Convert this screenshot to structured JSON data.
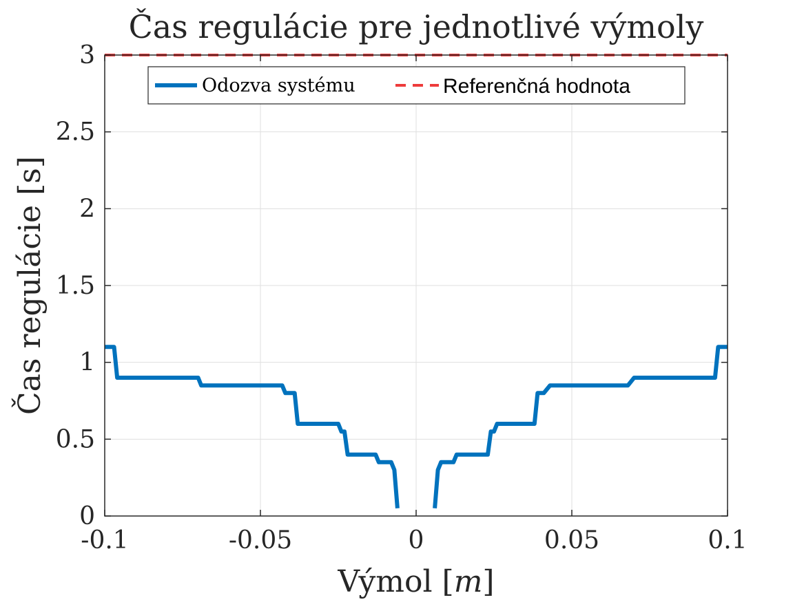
{
  "chart_data": {
    "type": "line",
    "title": "Čas regulácie pre jednotlivé výmoly",
    "xlabel": "Výmol [m]",
    "ylabel": "Čas regulácie [s]",
    "xlim": [
      -0.1,
      0.1
    ],
    "ylim": [
      0,
      3
    ],
    "xticks": [
      -0.1,
      -0.05,
      0,
      0.05,
      0.1
    ],
    "xtick_labels": [
      "-0.1",
      "-0.05",
      "0",
      "0.05",
      "0.1"
    ],
    "yticks": [
      0,
      0.5,
      1,
      1.5,
      2,
      2.5,
      3
    ],
    "ytick_labels": [
      "0",
      "0.5",
      "1",
      "1.5",
      "2",
      "2.5",
      "3"
    ],
    "grid": true,
    "legend_position": "top-center",
    "series": [
      {
        "name": "Odozva systému",
        "color": "#0072BD",
        "style": "solid",
        "segments": [
          {
            "x": [
              -0.1,
              -0.097,
              -0.096,
              -0.07,
              -0.069,
              -0.043,
              -0.042,
              -0.039,
              -0.038,
              -0.025,
              -0.024,
              -0.023,
              -0.022,
              -0.013,
              -0.012,
              -0.008,
              -0.007,
              -0.006
            ],
            "y": [
              1.1,
              1.1,
              0.9,
              0.9,
              0.85,
              0.85,
              0.8,
              0.8,
              0.6,
              0.6,
              0.55,
              0.55,
              0.4,
              0.4,
              0.35,
              0.35,
              0.3,
              0.05
            ]
          },
          {
            "x": [
              0.006,
              0.007,
              0.008,
              0.012,
              0.013,
              0.023,
              0.024,
              0.025,
              0.026,
              0.038,
              0.039,
              0.041,
              0.043,
              0.068,
              0.07,
              0.096,
              0.097,
              0.1
            ],
            "y": [
              0.05,
              0.3,
              0.35,
              0.35,
              0.4,
              0.4,
              0.55,
              0.55,
              0.6,
              0.6,
              0.8,
              0.8,
              0.85,
              0.85,
              0.9,
              0.9,
              1.1,
              1.1
            ]
          }
        ]
      },
      {
        "name": "Referenčná hodnota",
        "color": "#EE3B3B",
        "style": "dashed",
        "segments": [
          {
            "x": [
              -0.1,
              0.1
            ],
            "y": [
              3,
              3
            ]
          }
        ]
      }
    ]
  },
  "legend": {
    "entry1": "Odozva systému",
    "entry2": "Referenčná hodnota"
  },
  "labels": {
    "title": "Čas regulácie pre jednotlivé výmoly",
    "xlabel_main": "Výmol ",
    "xlabel_unit_open": "[",
    "xlabel_unit": "m",
    "xlabel_unit_close": "]",
    "ylabel": "Čas regulácie [s]"
  }
}
